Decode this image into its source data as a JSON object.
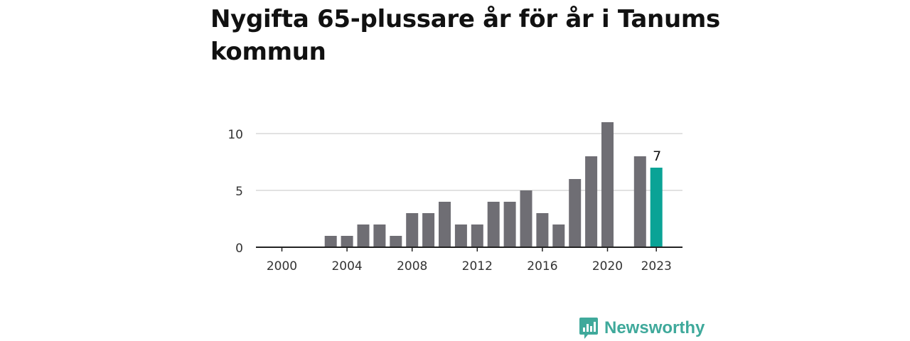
{
  "title": "Nygifta 65-plussare år för år i Tanums kommun",
  "brand": {
    "name": "Newsworthy",
    "icon": "newsworthy-logo-icon",
    "color": "#3fa99b"
  },
  "colors": {
    "bar": "#6f6e74",
    "highlight": "#0aa396",
    "grid": "#d8d8d8",
    "axis": "#222222",
    "text": "#333333"
  },
  "chart_data": {
    "type": "bar",
    "categories": [
      "2000",
      "2001",
      "2002",
      "2003",
      "2004",
      "2005",
      "2006",
      "2007",
      "2008",
      "2009",
      "2010",
      "2011",
      "2012",
      "2013",
      "2014",
      "2015",
      "2016",
      "2017",
      "2018",
      "2019",
      "2020",
      "2021",
      "2022",
      "2023"
    ],
    "values": [
      0,
      0,
      0,
      1,
      1,
      2,
      2,
      1,
      3,
      3,
      4,
      2,
      2,
      4,
      4,
      5,
      3,
      2,
      6,
      8,
      11,
      0,
      8,
      7
    ],
    "highlight_index": 23,
    "highlight_label": "7",
    "xticks": [
      "2000",
      "2004",
      "2008",
      "2012",
      "2016",
      "2020",
      "2023"
    ],
    "yticks": [
      0,
      5,
      10
    ],
    "ylim": [
      0,
      12
    ],
    "grid": true
  }
}
